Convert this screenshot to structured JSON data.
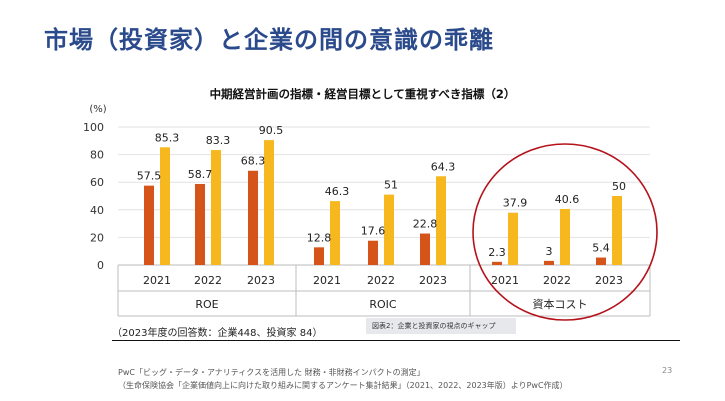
{
  "slide_title": "市場（投資家）と企業の間の意識の乖離",
  "chart_data": {
    "type": "bar",
    "title": "中期経営計画の指標・経営目標として重視すべき指標（2）",
    "y_unit": "(%)",
    "ylim": [
      0,
      100
    ],
    "yticks": [
      0,
      20,
      40,
      60,
      80,
      100
    ],
    "grid": true,
    "groups": [
      {
        "name": "ROE",
        "categories": [
          "2021",
          "2022",
          "2023"
        ],
        "values_company": [
          57.5,
          58.7,
          68.3
        ],
        "values_investor": [
          85.3,
          83.3,
          90.5
        ],
        "labels_company": [
          "57.5",
          "58.7",
          "68.3"
        ],
        "labels_investor": [
          "85.3",
          "83.3",
          "90.5"
        ]
      },
      {
        "name": "ROIC",
        "categories": [
          "2021",
          "2022",
          "2023"
        ],
        "values_company": [
          12.8,
          17.6,
          22.8
        ],
        "values_investor": [
          46.3,
          51,
          64.3
        ],
        "labels_company": [
          "12.8",
          "17.6",
          "22.8"
        ],
        "labels_investor": [
          "46.3",
          "51",
          "64.3"
        ]
      },
      {
        "name": "資本コスト",
        "categories": [
          "2021",
          "2022",
          "2023"
        ],
        "values_company": [
          2.3,
          3,
          5.4
        ],
        "values_investor": [
          37.9,
          40.6,
          50
        ],
        "labels_company": [
          "2.3",
          "3",
          "5.4"
        ],
        "labels_investor": [
          "37.9",
          "40.6",
          "50"
        ]
      }
    ],
    "colors": {
      "company": "#d4541a",
      "investor": "#f6b81e",
      "highlight": "#b5121b"
    },
    "highlighted_group": "資本コスト"
  },
  "note": "（2023年度の回答数：企業448、投資家 84）",
  "figure_caption": "図表2：企業と投資家の視点のギャップ",
  "source_line1": "PwC「ビッグ・データ・アナリティクスを活用した 財務・非財務インパクトの測定」",
  "source_line2": "（生命保険協会「企業価値向上に向けた取り組みに関するアンケート集計結果」（2021、2022、2023年版）よりPwC作成）",
  "page_number": "23"
}
